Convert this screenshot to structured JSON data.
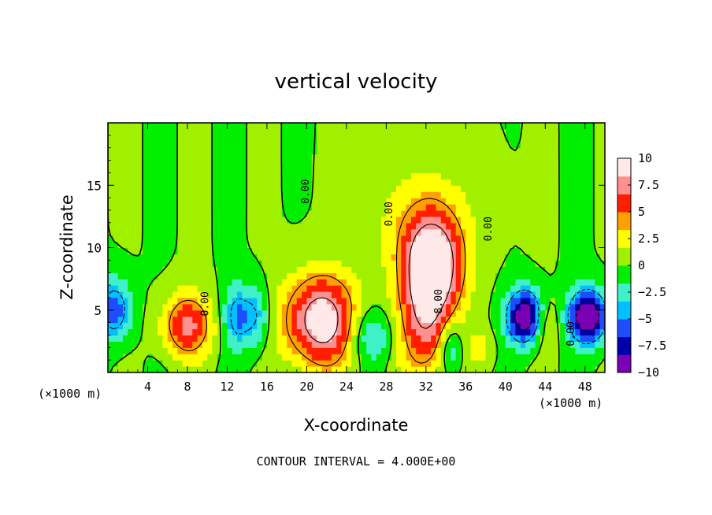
{
  "chart_data": {
    "type": "heatmap",
    "title": "vertical velocity",
    "xlabel": "X-coordinate",
    "ylabel": "Z-coordinate",
    "x_unit_label_left": "(×1000 m)",
    "x_unit_label_right": "(×1000 m)",
    "xlim": [
      0,
      50
    ],
    "ylim": [
      0,
      20
    ],
    "x_ticks": [
      4,
      8,
      12,
      16,
      20,
      24,
      28,
      32,
      36,
      40,
      44,
      48
    ],
    "y_ticks": [
      5,
      10,
      15
    ],
    "footer": "CONTOUR INTERVAL = 4.000E+00",
    "colorbar": {
      "min": -10,
      "max": 10,
      "ticks": [
        {
          "value": 10,
          "label": "10"
        },
        {
          "value": 7.5,
          "label": "7.5"
        },
        {
          "value": 5,
          "label": "5"
        },
        {
          "value": 2.5,
          "label": "2.5"
        },
        {
          "value": 0,
          "label": "0"
        },
        {
          "value": -2.5,
          "label": "−2.5"
        },
        {
          "value": -5,
          "label": "−5"
        },
        {
          "value": -7.5,
          "label": "−7.5"
        },
        {
          "value": -10,
          "label": "−10"
        }
      ],
      "colors": [
        "#7a00b4",
        "#0000aa",
        "#1e4cff",
        "#00c0ff",
        "#40f0c8",
        "#00ee00",
        "#a0f000",
        "#ffff00",
        "#ffa000",
        "#ff1e00",
        "#ff9090",
        "#ffe8e8"
      ]
    },
    "contour_labels": [
      {
        "text": "0.00",
        "x": 20.2,
        "y": 14.5
      },
      {
        "text": "0.00",
        "x": 28.6,
        "y": 12.7
      },
      {
        "text": "0.00",
        "x": 38.6,
        "y": 11.5
      },
      {
        "text": "0.00",
        "x": 10.1,
        "y": 5.5
      },
      {
        "text": "8.00",
        "x": 33.6,
        "y": 5.7
      },
      {
        "text": "0.00",
        "x": 46.9,
        "y": 3.1
      }
    ],
    "features": [
      {
        "x": 21.4,
        "z": 4.2,
        "value": 10,
        "sx": 2.6,
        "sz": 2.6
      },
      {
        "x": 32.7,
        "z": 8.5,
        "value": 10.5,
        "sx": 2.0,
        "sz": 2.8
      },
      {
        "x": 31.9,
        "z": 3.5,
        "value": 6,
        "sx": 1.8,
        "sz": 3.0
      },
      {
        "x": 8.0,
        "z": 3.8,
        "value": 7,
        "sx": 1.8,
        "sz": 1.8
      },
      {
        "x": 31.8,
        "z": 11.8,
        "value": 3,
        "sx": 3.5,
        "sz": 3.5
      },
      {
        "x": 42.0,
        "z": 4.5,
        "value": -11,
        "sx": 1.3,
        "sz": 1.5
      },
      {
        "x": 48.3,
        "z": 4.5,
        "value": -11,
        "sx": 1.4,
        "sz": 1.5
      },
      {
        "x": 0.7,
        "z": 5.0,
        "value": -6,
        "sx": 1.2,
        "sz": 1.8
      },
      {
        "x": 13.0,
        "z": 4.5,
        "value": -5,
        "sx": 1.0,
        "sz": 1.8
      },
      {
        "x": 15.0,
        "z": 4.5,
        "value": -4,
        "sx": 0.9,
        "sz": 1.8
      },
      {
        "x": 26.5,
        "z": 3.0,
        "value": -4,
        "sx": 1.5,
        "sz": 1.5
      },
      {
        "x": 34.5,
        "z": 2.0,
        "value": -4,
        "sx": 0.8,
        "sz": 1.4
      },
      {
        "x": 44.0,
        "z": 4.0,
        "value": 3,
        "sx": 1.0,
        "sz": 1.4
      },
      {
        "x": 37.5,
        "z": 2.0,
        "value": 2,
        "sx": 1.0,
        "sz": 1.0
      }
    ]
  }
}
